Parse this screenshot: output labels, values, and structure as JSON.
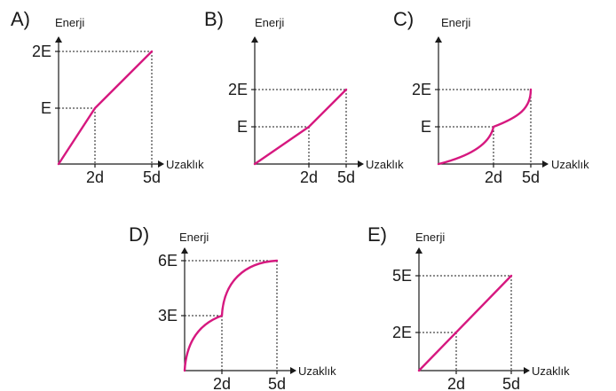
{
  "colors": {
    "curve": "#d6187f",
    "axis": "#1a1a1a"
  },
  "panels": [
    {
      "id": "A",
      "option_label": "A)",
      "y_axis_title": "Enerji",
      "x_axis_title": "Uzaklık",
      "x_ticks": [
        "2d",
        "5d"
      ],
      "y_ticks": [
        "E",
        "2E"
      ]
    },
    {
      "id": "B",
      "option_label": "B)",
      "y_axis_title": "Enerji",
      "x_axis_title": "Uzaklık",
      "x_ticks": [
        "2d",
        "5d"
      ],
      "y_ticks": [
        "E",
        "2E"
      ]
    },
    {
      "id": "C",
      "option_label": "C)",
      "y_axis_title": "Enerji",
      "x_axis_title": "Uzaklık",
      "x_ticks": [
        "2d",
        "5d"
      ],
      "y_ticks": [
        "E",
        "2E"
      ]
    },
    {
      "id": "D",
      "option_label": "D)",
      "y_axis_title": "Enerji",
      "x_axis_title": "Uzaklık",
      "x_ticks": [
        "2d",
        "5d"
      ],
      "y_ticks": [
        "3E",
        "6E"
      ]
    },
    {
      "id": "E",
      "option_label": "E)",
      "y_axis_title": "Enerji",
      "x_axis_title": "Uzaklık",
      "x_ticks": [
        "2d",
        "5d"
      ],
      "y_ticks": [
        "2E",
        "5E"
      ]
    }
  ]
}
